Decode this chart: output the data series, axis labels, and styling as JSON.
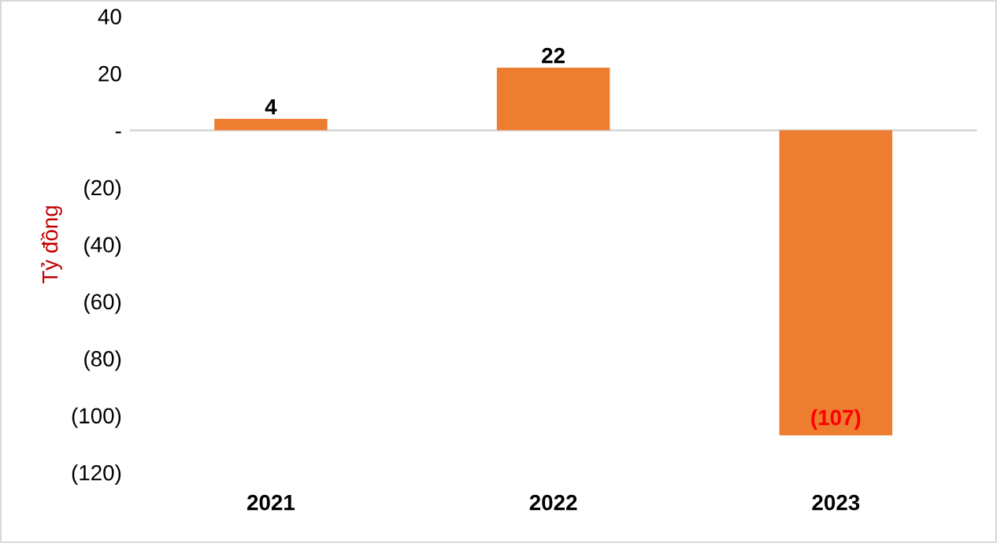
{
  "chart_data": {
    "type": "bar",
    "ylabel": "Tỷ đồng",
    "categories": [
      "2021",
      "2022",
      "2023"
    ],
    "values": [
      4,
      22,
      -107
    ],
    "value_labels": [
      "4",
      "22",
      "(107)"
    ],
    "color": "#ed7d31",
    "ylim": [
      -120,
      40
    ],
    "yticks": [
      {
        "value": 40,
        "label": "40"
      },
      {
        "value": 20,
        "label": "20"
      },
      {
        "value": 0,
        "label": "-"
      },
      {
        "value": -20,
        "label": "(20)"
      },
      {
        "value": -40,
        "label": "(40)"
      },
      {
        "value": -60,
        "label": "(60)"
      },
      {
        "value": -80,
        "label": "(80)"
      },
      {
        "value": -100,
        "label": "(100)"
      },
      {
        "value": -120,
        "label": "(120)"
      }
    ],
    "legend": false
  }
}
